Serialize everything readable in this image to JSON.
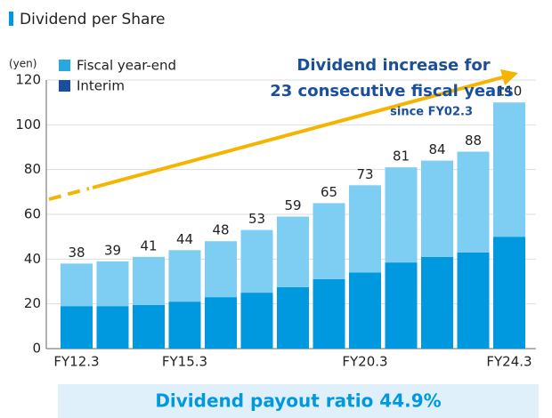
{
  "chart_data": {
    "type": "stacked_bar",
    "title": "Dividend per Share",
    "y_label": "(yen)",
    "categories": [
      "FY12.3",
      null,
      null,
      "FY15.3",
      null,
      null,
      null,
      null,
      "FY20.3",
      null,
      null,
      null,
      "FY24.3"
    ],
    "series": [
      {
        "name": "Fiscal year-end",
        "color": "#7ecef4",
        "values": [
          19,
          20,
          21.5,
          23,
          25,
          28,
          31.5,
          34,
          39,
          42.5,
          43,
          45,
          60
        ]
      },
      {
        "name": "Interim",
        "color": "#0099e0",
        "values": [
          19,
          19,
          19.5,
          21,
          23,
          25,
          27.5,
          31,
          34,
          38.5,
          41,
          43,
          50
        ]
      }
    ],
    "totals": [
      38,
      39,
      41,
      44,
      48,
      53,
      59,
      65,
      73,
      81,
      84,
      88,
      110
    ],
    "ylim": [
      0,
      120
    ],
    "yticks": [
      0,
      20,
      40,
      60,
      80,
      100,
      120
    ],
    "grid": true,
    "annotations": [
      "Dividend increase for",
      "23 consecutive fiscal years",
      "since FY02.3"
    ],
    "footer": "Dividend payout ratio 44.9%"
  }
}
